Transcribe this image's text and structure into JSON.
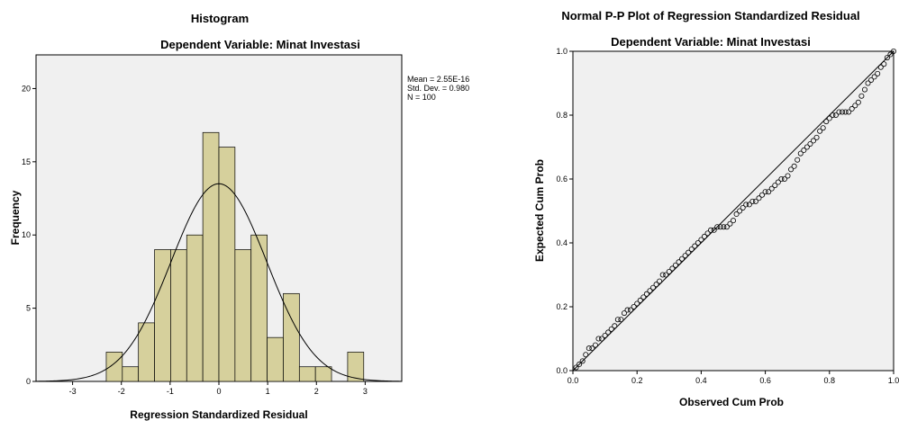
{
  "chart_data": [
    {
      "type": "bar",
      "title": "Histogram",
      "subtitle": "Dependent Variable: Minat Investasi",
      "xlabel": "Regression Standardized Residual",
      "ylabel": "Frequency",
      "xlim": [
        -3.75,
        3.75
      ],
      "ylim": [
        0,
        22.3
      ],
      "xticks": [
        -3,
        -2,
        -1,
        0,
        1,
        2,
        3
      ],
      "yticks": [
        0,
        5,
        10,
        15,
        20
      ],
      "bin_width": 0.33,
      "bins": [
        {
          "start": -2.31,
          "count": 2
        },
        {
          "start": -1.98,
          "count": 1
        },
        {
          "start": -1.65,
          "count": 4
        },
        {
          "start": -1.32,
          "count": 9
        },
        {
          "start": -0.99,
          "count": 9
        },
        {
          "start": -0.66,
          "count": 10
        },
        {
          "start": -0.33,
          "count": 17
        },
        {
          "start": 0.0,
          "count": 16
        },
        {
          "start": 0.33,
          "count": 9
        },
        {
          "start": 0.66,
          "count": 10
        },
        {
          "start": 0.99,
          "count": 3
        },
        {
          "start": 1.32,
          "count": 6
        },
        {
          "start": 1.65,
          "count": 1
        },
        {
          "start": 1.98,
          "count": 1
        },
        {
          "start": 2.31,
          "count": 0
        },
        {
          "start": 2.64,
          "count": 2
        }
      ],
      "normal_curve": {
        "mean": 0,
        "sd": 0.98,
        "n": 100,
        "peak": 13.5
      },
      "stats": [
        "Mean = 2.55E-16",
        "Std. Dev. = 0.980",
        "N = 100"
      ],
      "bar_color": "#d6d09c",
      "plot_bg": "#f0f0f0",
      "grid": false
    },
    {
      "type": "scatter",
      "title": "Normal P-P Plot of Regression Standardized Residual",
      "subtitle": "Dependent Variable: Minat Investasi",
      "xlabel": "Observed Cum Prob",
      "ylabel": "Expected Cum Prob",
      "xlim": [
        0,
        1
      ],
      "ylim": [
        0,
        1
      ],
      "xticks": [
        "0.0",
        "0.2",
        "0.4",
        "0.6",
        "0.8",
        "1.0"
      ],
      "yticks": [
        "0.0",
        "0.2",
        "0.4",
        "0.6",
        "0.8",
        "1.0"
      ],
      "reference_line": [
        [
          0,
          0
        ],
        [
          1,
          1
        ]
      ],
      "points": [
        [
          0.01,
          0.01
        ],
        [
          0.02,
          0.02
        ],
        [
          0.03,
          0.03
        ],
        [
          0.04,
          0.05
        ],
        [
          0.05,
          0.07
        ],
        [
          0.06,
          0.07
        ],
        [
          0.07,
          0.08
        ],
        [
          0.08,
          0.1
        ],
        [
          0.09,
          0.1
        ],
        [
          0.1,
          0.11
        ],
        [
          0.11,
          0.12
        ],
        [
          0.12,
          0.13
        ],
        [
          0.13,
          0.14
        ],
        [
          0.14,
          0.16
        ],
        [
          0.15,
          0.16
        ],
        [
          0.16,
          0.18
        ],
        [
          0.17,
          0.19
        ],
        [
          0.18,
          0.19
        ],
        [
          0.19,
          0.2
        ],
        [
          0.2,
          0.21
        ],
        [
          0.21,
          0.22
        ],
        [
          0.22,
          0.23
        ],
        [
          0.23,
          0.24
        ],
        [
          0.24,
          0.25
        ],
        [
          0.25,
          0.26
        ],
        [
          0.26,
          0.27
        ],
        [
          0.27,
          0.28
        ],
        [
          0.28,
          0.3
        ],
        [
          0.29,
          0.3
        ],
        [
          0.3,
          0.31
        ],
        [
          0.31,
          0.32
        ],
        [
          0.32,
          0.33
        ],
        [
          0.33,
          0.34
        ],
        [
          0.34,
          0.35
        ],
        [
          0.35,
          0.36
        ],
        [
          0.36,
          0.37
        ],
        [
          0.37,
          0.38
        ],
        [
          0.38,
          0.39
        ],
        [
          0.39,
          0.4
        ],
        [
          0.4,
          0.41
        ],
        [
          0.41,
          0.42
        ],
        [
          0.42,
          0.43
        ],
        [
          0.43,
          0.44
        ],
        [
          0.44,
          0.44
        ],
        [
          0.45,
          0.45
        ],
        [
          0.46,
          0.45
        ],
        [
          0.47,
          0.45
        ],
        [
          0.48,
          0.45
        ],
        [
          0.49,
          0.46
        ],
        [
          0.5,
          0.47
        ],
        [
          0.51,
          0.49
        ],
        [
          0.52,
          0.5
        ],
        [
          0.53,
          0.51
        ],
        [
          0.54,
          0.52
        ],
        [
          0.55,
          0.52
        ],
        [
          0.56,
          0.53
        ],
        [
          0.57,
          0.53
        ],
        [
          0.58,
          0.54
        ],
        [
          0.59,
          0.55
        ],
        [
          0.6,
          0.56
        ],
        [
          0.61,
          0.56
        ],
        [
          0.62,
          0.57
        ],
        [
          0.63,
          0.58
        ],
        [
          0.64,
          0.59
        ],
        [
          0.65,
          0.6
        ],
        [
          0.66,
          0.6
        ],
        [
          0.67,
          0.61
        ],
        [
          0.68,
          0.63
        ],
        [
          0.69,
          0.64
        ],
        [
          0.7,
          0.66
        ],
        [
          0.71,
          0.68
        ],
        [
          0.72,
          0.69
        ],
        [
          0.73,
          0.7
        ],
        [
          0.74,
          0.71
        ],
        [
          0.75,
          0.72
        ],
        [
          0.76,
          0.73
        ],
        [
          0.77,
          0.75
        ],
        [
          0.78,
          0.76
        ],
        [
          0.79,
          0.78
        ],
        [
          0.8,
          0.79
        ],
        [
          0.81,
          0.8
        ],
        [
          0.82,
          0.8
        ],
        [
          0.83,
          0.81
        ],
        [
          0.84,
          0.81
        ],
        [
          0.85,
          0.81
        ],
        [
          0.86,
          0.81
        ],
        [
          0.87,
          0.82
        ],
        [
          0.88,
          0.83
        ],
        [
          0.89,
          0.84
        ],
        [
          0.9,
          0.86
        ],
        [
          0.91,
          0.88
        ],
        [
          0.92,
          0.9
        ],
        [
          0.93,
          0.91
        ],
        [
          0.94,
          0.92
        ],
        [
          0.95,
          0.93
        ],
        [
          0.96,
          0.95
        ],
        [
          0.97,
          0.96
        ],
        [
          0.98,
          0.98
        ],
        [
          0.99,
          0.99
        ],
        [
          1.0,
          1.0
        ]
      ],
      "plot_bg": "#f0f0f0",
      "grid": false
    }
  ]
}
